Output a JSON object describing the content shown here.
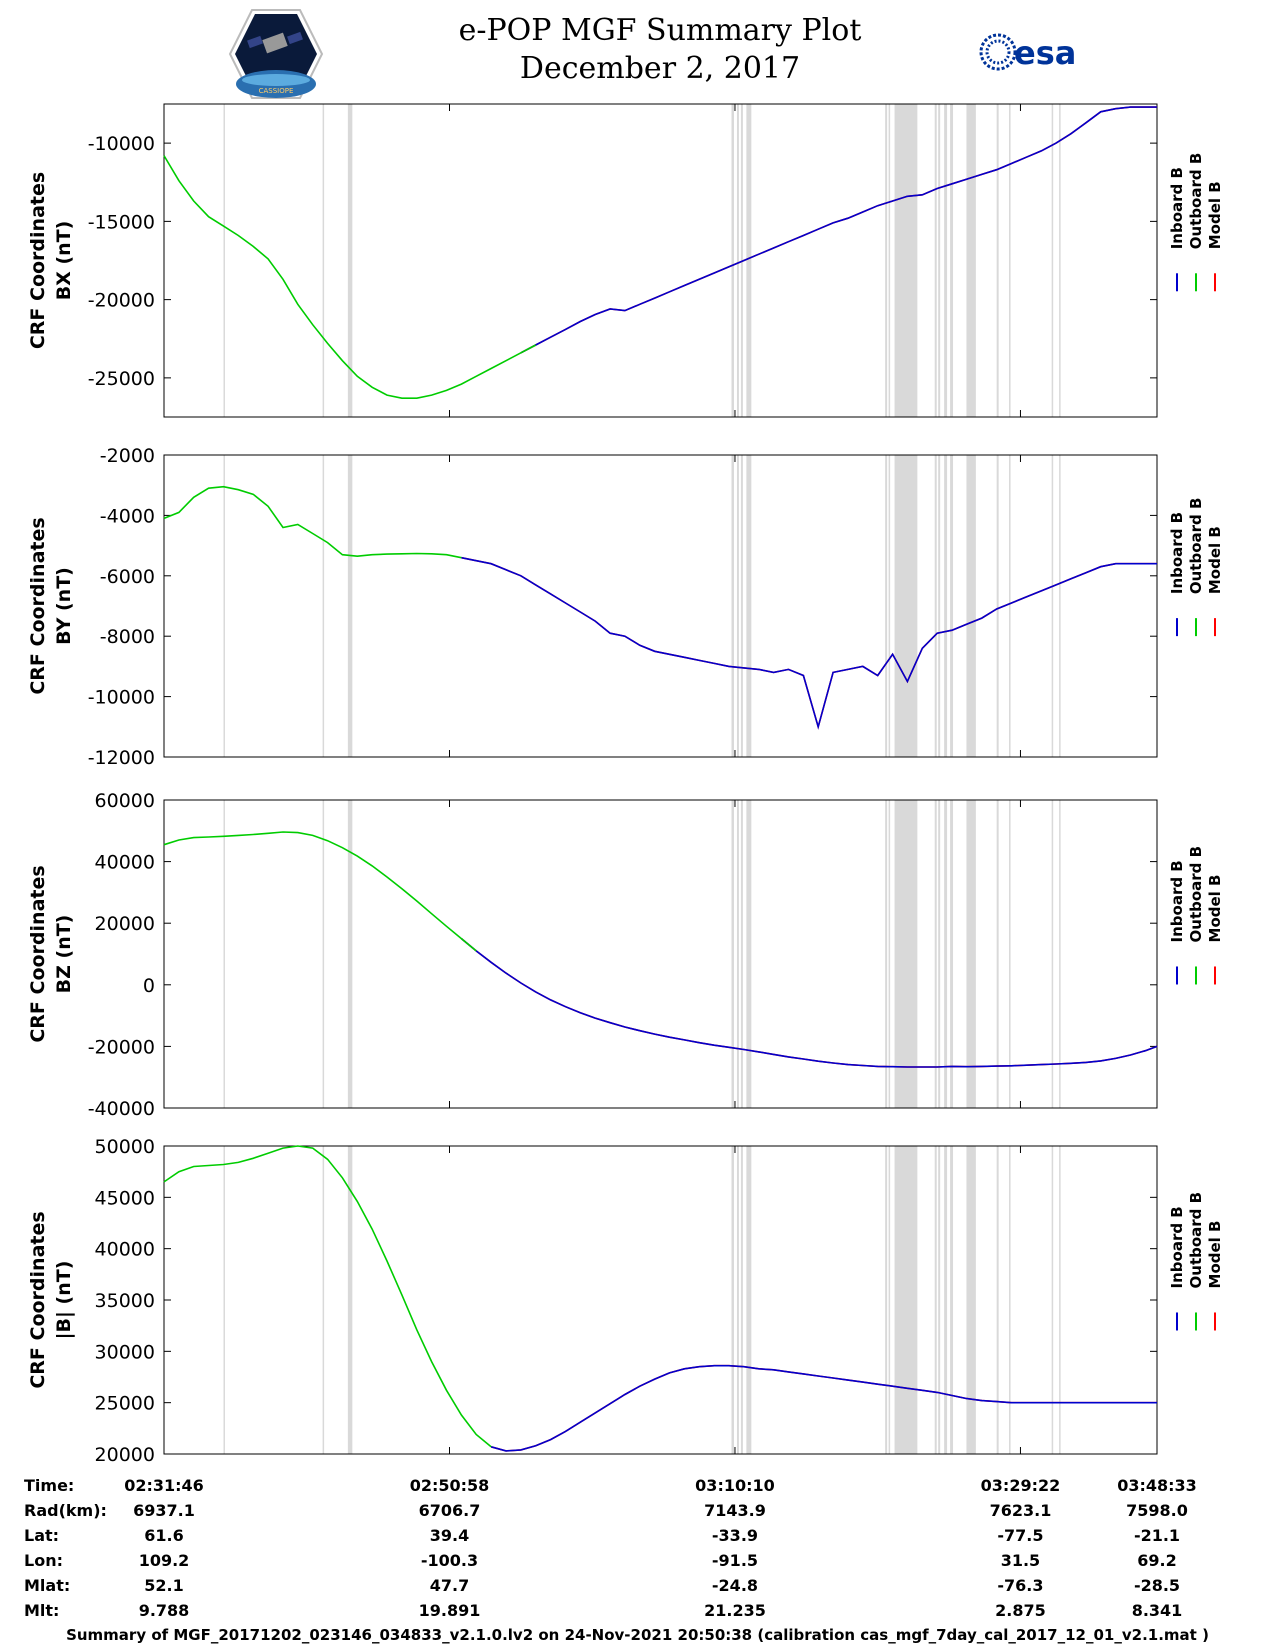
{
  "header": {
    "title_line1": "e-POP MGF Summary Plot",
    "title_line2": "December 2, 2017",
    "logo_left_text": "CASSIOPE",
    "logo_right_text": "esa"
  },
  "colors": {
    "inboard": "#0000cc",
    "outboard": "#00cc00",
    "model": "#ff0000",
    "gaps": "#d9d9d9"
  },
  "legend": [
    "Inboard B",
    "Outboard B",
    "Model B"
  ],
  "chart_data": [
    {
      "type": "line",
      "ylabel": "CRF Coordinates",
      "ylabel2": "BX (nT)",
      "ylim": [
        -27500,
        -7500
      ],
      "yticks": [
        -10000,
        -15000,
        -20000,
        -25000
      ],
      "x": [
        0,
        60,
        120,
        180,
        240,
        300,
        360,
        420,
        480,
        540,
        600,
        660,
        720,
        780,
        840,
        900,
        960,
        1020,
        1080,
        1140,
        1200,
        1260,
        1320,
        1380,
        1440,
        1500,
        1560,
        1620,
        1680,
        1740,
        1800,
        1860,
        1920,
        1980,
        2040,
        2100,
        2160,
        2220,
        2280,
        2340,
        2400,
        2460,
        2520,
        2580,
        2640,
        2700,
        2760,
        2820,
        2880,
        2940,
        3000,
        3060,
        3120,
        3180,
        3240,
        3300,
        3360,
        3420,
        3480,
        3540,
        3600,
        3660,
        3720,
        3780,
        3840,
        3900,
        3960,
        4007
      ],
      "series": [
        {
          "name": "Outboard B",
          "x_end": 1500,
          "values": [
            -10800,
            -12400,
            -13700,
            -14700,
            -15300,
            -15900,
            -16600,
            -17400,
            -18700,
            -20300,
            -21600,
            -22800,
            -23900,
            -24900,
            -25600,
            -26100,
            -26300,
            -26300,
            -26100,
            -25800,
            -25400,
            -24900,
            -24400,
            -23900,
            -23400,
            -22900,
            -22400,
            -21900,
            -21400,
            -20950,
            -20600,
            -20700,
            -20300,
            -19900,
            -19500,
            -19100,
            -18700,
            -18300,
            -17900,
            -17500,
            -17100,
            -16700,
            -16300,
            -15900,
            -15500,
            -15100,
            -14800,
            -14400,
            -14000,
            -13700,
            -13400,
            -13300,
            -12900,
            -12600,
            -12300,
            -12000,
            -11700,
            -11300,
            -10900,
            -10500,
            -10000,
            -9400,
            -8700,
            -8000,
            -7800,
            -7700,
            -7700,
            -7700
          ]
        },
        {
          "name": "Inboard B",
          "x_start": 1500
        },
        {
          "name": "Model B",
          "x_start": 1500
        }
      ]
    },
    {
      "type": "line",
      "ylabel": "CRF Coordinates",
      "ylabel2": "BY (nT)",
      "ylim": [
        -12000,
        -2000
      ],
      "yticks": [
        -2000,
        -4000,
        -6000,
        -8000,
        -10000,
        -12000
      ],
      "x": [
        0,
        60,
        120,
        180,
        240,
        300,
        360,
        420,
        480,
        540,
        600,
        660,
        720,
        780,
        840,
        900,
        960,
        1020,
        1080,
        1140,
        1200,
        1260,
        1320,
        1380,
        1440,
        1500,
        1560,
        1620,
        1680,
        1740,
        1800,
        1860,
        1920,
        1980,
        2040,
        2100,
        2160,
        2220,
        2280,
        2340,
        2400,
        2460,
        2520,
        2580,
        2640,
        2700,
        2760,
        2820,
        2880,
        2940,
        3000,
        3060,
        3120,
        3180,
        3240,
        3300,
        3360,
        3420,
        3480,
        3540,
        3600,
        3660,
        3720,
        3780,
        3840,
        3900,
        3960,
        4007
      ],
      "series": [
        {
          "name": "Outboard B",
          "x_end": 1240,
          "values": [
            -4100,
            -3900,
            -3400,
            -3100,
            -3050,
            -3150,
            -3300,
            -3700,
            -4400,
            -4300,
            -4600,
            -4900,
            -5300,
            -5350,
            -5300,
            -5280,
            -5270,
            -5260,
            -5270,
            -5300,
            -5400,
            -5500,
            -5600,
            -5800,
            -6000,
            -6300,
            -6600,
            -6900,
            -7200,
            -7500,
            -7900,
            -8000,
            -8300,
            -8500,
            -8600,
            -8700,
            -8800,
            -8900,
            -9000,
            -9050,
            -9100,
            -9200,
            -9100,
            -9300,
            -11000,
            -9200,
            -9100,
            -9000,
            -9300,
            -8600,
            -9500,
            -8400,
            -7900,
            -7800,
            -7600,
            -7400,
            -7100,
            -6900,
            -6700,
            -6500,
            -6300,
            -6100,
            -5900,
            -5700,
            -5600,
            -5600,
            -5600,
            -5600
          ]
        },
        {
          "name": "Inboard B",
          "x_start": 1240
        },
        {
          "name": "Model B",
          "x_start": 1240
        }
      ]
    },
    {
      "type": "line",
      "ylabel": "CRF Coordinates",
      "ylabel2": "BZ (nT)",
      "ylim": [
        -40000,
        60000
      ],
      "yticks": [
        60000,
        40000,
        20000,
        0,
        -20000,
        -40000
      ],
      "x": [
        0,
        60,
        120,
        180,
        240,
        300,
        360,
        420,
        480,
        540,
        600,
        660,
        720,
        780,
        840,
        900,
        960,
        1020,
        1080,
        1140,
        1200,
        1260,
        1320,
        1380,
        1440,
        1500,
        1560,
        1620,
        1680,
        1740,
        1800,
        1860,
        1920,
        1980,
        2040,
        2100,
        2160,
        2220,
        2280,
        2340,
        2400,
        2460,
        2520,
        2580,
        2640,
        2700,
        2760,
        2820,
        2880,
        2940,
        3000,
        3060,
        3120,
        3180,
        3240,
        3300,
        3360,
        3420,
        3480,
        3540,
        3600,
        3660,
        3720,
        3780,
        3840,
        3900,
        3960,
        4007
      ],
      "series": [
        {
          "name": "Outboard B",
          "x_end": 1260,
          "values": [
            45500,
            47000,
            47800,
            48000,
            48200,
            48500,
            48800,
            49200,
            49600,
            49400,
            48500,
            46800,
            44500,
            41800,
            38600,
            35000,
            31200,
            27200,
            23100,
            19000,
            15000,
            11000,
            7300,
            3800,
            600,
            -2300,
            -4900,
            -7100,
            -9100,
            -10800,
            -12300,
            -13700,
            -14900,
            -16000,
            -17000,
            -17900,
            -18800,
            -19600,
            -20300,
            -21000,
            -21800,
            -22600,
            -23400,
            -24100,
            -24800,
            -25400,
            -25900,
            -26200,
            -26500,
            -26600,
            -26700,
            -26700,
            -26700,
            -26500,
            -26600,
            -26500,
            -26400,
            -26300,
            -26100,
            -25900,
            -25700,
            -25500,
            -25200,
            -24700,
            -23900,
            -22800,
            -21400,
            -20000
          ]
        },
        {
          "name": "Inboard B",
          "x_start": 1260
        },
        {
          "name": "Model B",
          "x_start": 1260
        }
      ]
    },
    {
      "type": "line",
      "ylabel": "CRF Coordinates",
      "ylabel2": "|B| (nT)",
      "ylim": [
        20000,
        50000
      ],
      "yticks": [
        50000,
        45000,
        40000,
        35000,
        30000,
        25000,
        20000
      ],
      "x": [
        0,
        60,
        120,
        180,
        240,
        300,
        360,
        420,
        480,
        540,
        600,
        660,
        720,
        780,
        840,
        900,
        960,
        1020,
        1080,
        1140,
        1200,
        1260,
        1320,
        1380,
        1440,
        1500,
        1560,
        1620,
        1680,
        1740,
        1800,
        1860,
        1920,
        1980,
        2040,
        2100,
        2160,
        2220,
        2280,
        2340,
        2400,
        2460,
        2520,
        2580,
        2640,
        2700,
        2760,
        2820,
        2880,
        2940,
        3000,
        3060,
        3120,
        3180,
        3240,
        3300,
        3360,
        3420,
        3480,
        3540,
        3600,
        3660,
        3720,
        3780,
        3840,
        3900,
        3960,
        4007
      ],
      "series": [
        {
          "name": "Outboard B",
          "x_end": 1340,
          "values": [
            46500,
            47500,
            48000,
            48100,
            48200,
            48400,
            48800,
            49300,
            49800,
            50000,
            49800,
            48700,
            46900,
            44600,
            41900,
            38800,
            35500,
            32100,
            29000,
            26200,
            23800,
            21900,
            20700,
            20300,
            20400,
            20800,
            21400,
            22200,
            23100,
            24000,
            24900,
            25800,
            26600,
            27300,
            27900,
            28300,
            28500,
            28600,
            28600,
            28500,
            28300,
            28200,
            28000,
            27800,
            27600,
            27400,
            27200,
            27000,
            26800,
            26600,
            26400,
            26200,
            26000,
            25700,
            25400,
            25200,
            25100,
            25000,
            25000,
            25000,
            25000,
            25000,
            25000,
            25000,
            25000,
            25000,
            25000,
            25000
          ]
        },
        {
          "name": "Inboard B",
          "x_start": 1340
        },
        {
          "name": "Model B",
          "x_start": 1340
        }
      ]
    }
  ],
  "gap_bands_seconds": [
    [
      240,
      246
    ],
    [
      640,
      646
    ],
    [
      742,
      760
    ],
    [
      2290,
      2300
    ],
    [
      2312,
      2320
    ],
    [
      2328,
      2336
    ],
    [
      2350,
      2370
    ],
    [
      2910,
      2918
    ],
    [
      2924,
      2930
    ],
    [
      2948,
      3040
    ],
    [
      3110,
      3118
    ],
    [
      3124,
      3132
    ],
    [
      3148,
      3160
    ],
    [
      3172,
      3184
    ],
    [
      3238,
      3276
    ],
    [
      3360,
      3368
    ],
    [
      3410,
      3416
    ],
    [
      3582,
      3588
    ],
    [
      3612,
      3618
    ]
  ],
  "ephemeris": {
    "row_labels": [
      "Time:",
      "Rad(km):",
      "Lat:",
      "Lon:",
      "Mlat:",
      "Mlt:"
    ],
    "columns": [
      {
        "values": [
          "02:31:46",
          "6937.1",
          "61.6",
          "109.2",
          "52.1",
          "9.788"
        ]
      },
      {
        "values": [
          "02:50:58",
          "6706.7",
          "39.4",
          "-100.3",
          "47.7",
          "19.891"
        ]
      },
      {
        "values": [
          "03:10:10",
          "7143.9",
          "-33.9",
          "-91.5",
          "-24.8",
          "21.235"
        ]
      },
      {
        "values": [
          "03:29:22",
          "7623.1",
          "-77.5",
          "31.5",
          "-76.3",
          "2.875"
        ]
      },
      {
        "values": [
          "03:48:33",
          "7598.0",
          "-21.1",
          "69.2",
          "-28.5",
          "8.341"
        ]
      }
    ]
  },
  "footer": "Summary of MGF_20171202_023146_034833_v2.1.0.lv2 on 24-Nov-2021 20:50:38 (calibration cas_mgf_7day_cal_2017_12_01_v2.1.mat )"
}
